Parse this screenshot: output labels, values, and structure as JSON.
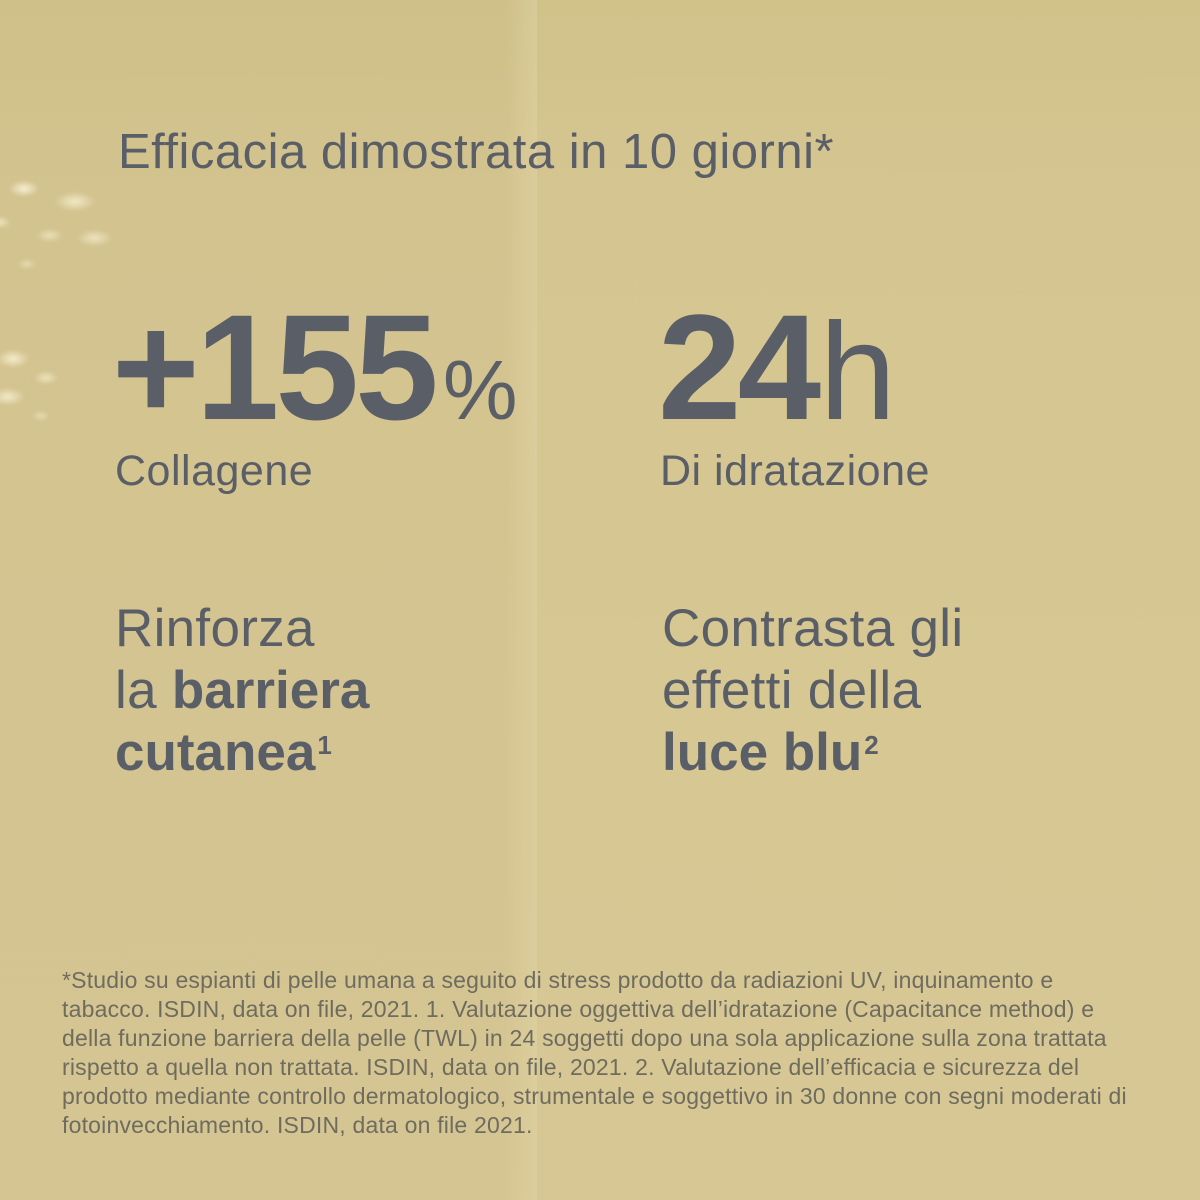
{
  "page": {
    "background_left": "#d3c38f",
    "background_right": "#d6c793",
    "text_color": "#5a5e67",
    "footnote_color": "#6e6c5f"
  },
  "title": "Efficacia dimostrata in 10 giorni*",
  "stats": {
    "left": {
      "value": "+155",
      "unit": "%",
      "label": "Collagene"
    },
    "right": {
      "value": "24",
      "unit": "h",
      "label": "Di idratazione"
    }
  },
  "claims": {
    "left": {
      "line1": "Rinforza",
      "line2_light": "la",
      "line2_bold": "barriera",
      "line3_bold": "cutanea",
      "line3_sup": "1"
    },
    "right": {
      "line1": "Contrasta gli",
      "line2": "effetti della",
      "line3_bold": "luce blu",
      "line3_sup": "2"
    }
  },
  "footnote": "*Studio su espianti di pelle umana a seguito di stress prodotto da radiazioni UV, inquinamento e tabacco. ISDIN, data on file, 2021. 1. Valutazione oggettiva dell’idratazione (Capacitance method) e della funzione barriera della pelle (TWL) in 24 soggetti dopo una sola applicazione sulla zona trattata rispetto a quella non trattata. ISDIN, data on file, 2021. 2. Valutazione dell’efficacia e sicurezza del prodotto mediante controllo dermatologico, strumentale e soggettivo in 30 donne con segni moderati di fotoinvecchiamento. ISDIN, data on file 2021."
}
